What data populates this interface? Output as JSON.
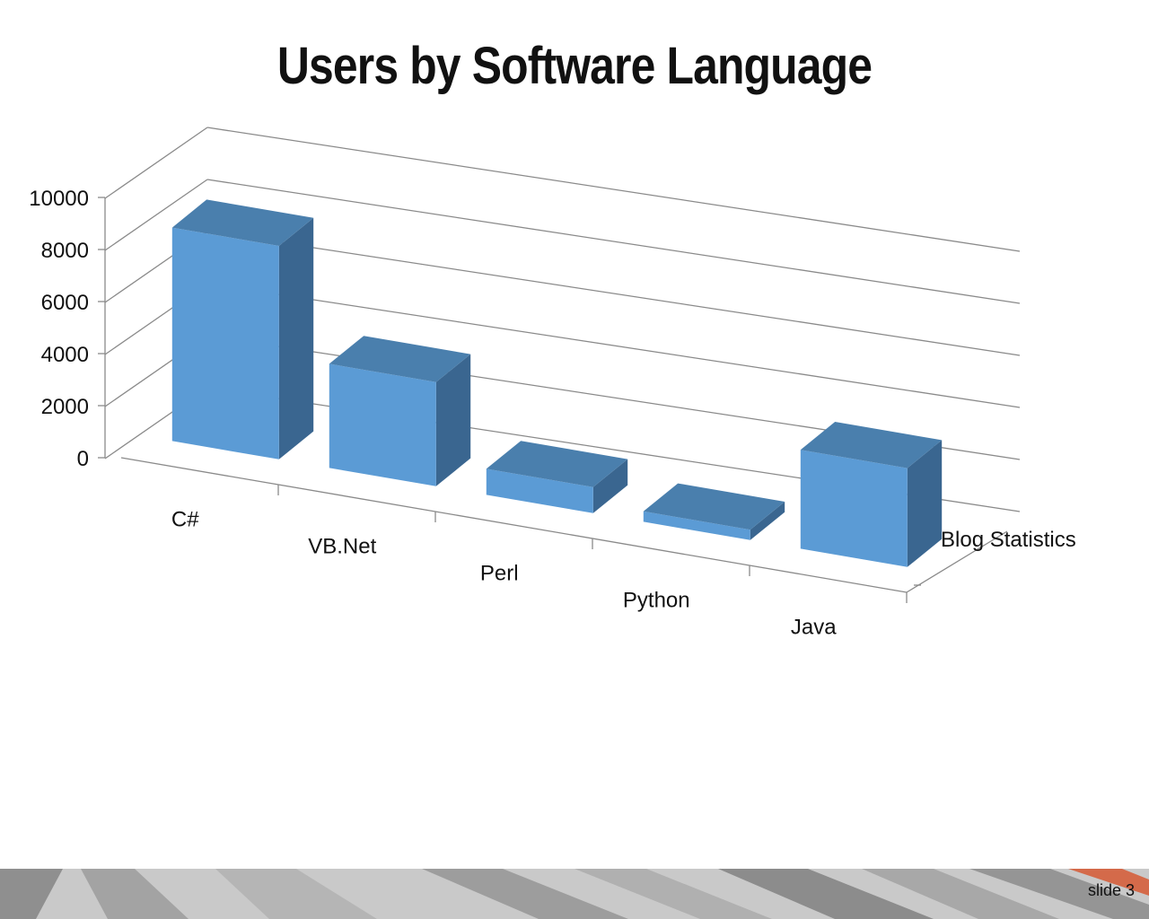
{
  "slide": {
    "title": "Users by Software Language",
    "slide_number": "slide 3"
  },
  "chart_data": {
    "type": "bar",
    "title": "Users by Software Language",
    "categories": [
      "C#",
      "VB.Net",
      "Perl",
      "Python",
      "Java"
    ],
    "series": [
      {
        "name": "Blog Statistics",
        "values": [
          8200,
          4000,
          1000,
          400,
          3800
        ]
      }
    ],
    "ylim": [
      0,
      10000
    ],
    "yticks": [
      "0",
      "2000",
      "4000",
      "6000",
      "8000",
      "10000"
    ],
    "grid": true,
    "legend": "none",
    "style": "3d-column",
    "colors": {
      "front": "#5b9bd5",
      "top": "#4a7fad",
      "side": "#3a6690"
    }
  }
}
